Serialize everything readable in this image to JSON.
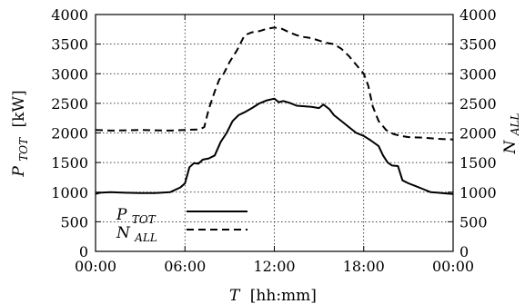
{
  "chart_data": {
    "type": "line",
    "xlabel_symbol": "T",
    "xlabel_unit": "[hh:mm]",
    "ylabel_left_symbol": "P",
    "ylabel_left_sub": "TOT",
    "ylabel_left_unit": "[kW]",
    "ylabel_right_symbol": "N",
    "ylabel_right_sub": "ALL",
    "xlim": [
      0,
      24
    ],
    "ylim": [
      0,
      4000
    ],
    "y2lim": [
      0,
      4000
    ],
    "grid": true,
    "legend_position": "bottom-left",
    "x_ticks": [
      {
        "value": 0,
        "label": "00:00"
      },
      {
        "value": 6,
        "label": "06:00"
      },
      {
        "value": 12,
        "label": "12:00"
      },
      {
        "value": 18,
        "label": "18:00"
      },
      {
        "value": 24,
        "label": "00:00"
      }
    ],
    "y_ticks": [
      "0",
      "500",
      "1000",
      "1500",
      "2000",
      "2500",
      "3000",
      "3500",
      "4000"
    ],
    "y2_ticks": [
      "0",
      "500",
      "1000",
      "1500",
      "2000",
      "2500",
      "3000",
      "3500",
      "4000"
    ],
    "series": [
      {
        "name": "P_TOT",
        "legend_symbol": "P",
        "legend_sub": "TOT",
        "style": "solid",
        "axis": "left",
        "x": [
          0,
          0.3,
          1,
          2,
          3,
          4,
          5,
          5.7,
          6.0,
          6.3,
          6.6,
          6.9,
          7.2,
          7.6,
          8.0,
          8.4,
          8.8,
          9.2,
          9.6,
          10.0,
          10.5,
          11.0,
          11.5,
          12.0,
          12.3,
          12.6,
          13.0,
          13.5,
          14.0,
          14.5,
          15.0,
          15.3,
          15.7,
          16.0,
          16.5,
          17.0,
          17.5,
          18.0,
          18.5,
          19.0,
          19.3,
          19.6,
          19.9,
          20.3,
          20.6,
          21.0,
          21.5,
          22.0,
          22.5,
          23.0,
          23.5,
          24.0
        ],
        "y": [
          970,
          990,
          1000,
          990,
          985,
          985,
          1000,
          1080,
          1150,
          1420,
          1490,
          1480,
          1550,
          1570,
          1620,
          1850,
          2000,
          2200,
          2300,
          2350,
          2420,
          2500,
          2550,
          2580,
          2520,
          2540,
          2510,
          2460,
          2450,
          2440,
          2420,
          2480,
          2400,
          2300,
          2200,
          2100,
          2000,
          1950,
          1870,
          1780,
          1620,
          1500,
          1450,
          1440,
          1200,
          1150,
          1100,
          1050,
          1000,
          990,
          980,
          970
        ]
      },
      {
        "name": "N_ALL",
        "legend_symbol": "N",
        "legend_sub": "ALL",
        "style": "dashed",
        "axis": "right",
        "x": [
          0,
          1,
          2,
          3,
          4,
          5,
          6,
          6.5,
          7.0,
          7.3,
          7.6,
          8.0,
          8.3,
          8.6,
          9.0,
          9.5,
          10.0,
          10.5,
          11.0,
          11.5,
          12.0,
          12.5,
          13.0,
          13.5,
          14.0,
          14.5,
          15.0,
          15.5,
          16.0,
          16.5,
          17.0,
          17.5,
          18.0,
          18.3,
          18.6,
          19.0,
          19.5,
          20.0,
          20.5,
          21.0,
          22.0,
          23.0,
          24.0
        ],
        "y": [
          2050,
          2040,
          2045,
          2050,
          2045,
          2040,
          2050,
          2055,
          2060,
          2100,
          2400,
          2700,
          2900,
          3000,
          3200,
          3400,
          3650,
          3700,
          3720,
          3760,
          3780,
          3760,
          3700,
          3650,
          3620,
          3600,
          3560,
          3520,
          3500,
          3420,
          3300,
          3150,
          3000,
          2800,
          2450,
          2200,
          2050,
          1980,
          1950,
          1930,
          1920,
          1900,
          1890
        ]
      }
    ]
  }
}
